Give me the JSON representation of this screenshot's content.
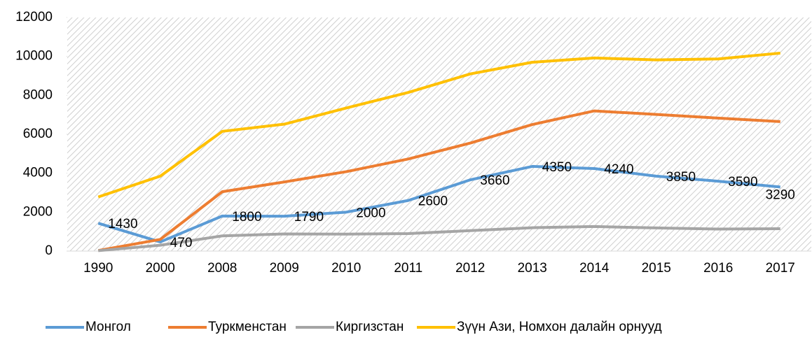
{
  "chart_data": {
    "type": "line",
    "categories": [
      "1990",
      "2000",
      "2008",
      "2009",
      "2010",
      "2011",
      "2012",
      "2013",
      "2014",
      "2015",
      "2016",
      "2017"
    ],
    "series": [
      {
        "name": "Монгол",
        "color": "#5b9bd5",
        "values": [
          1430,
          470,
          1800,
          1790,
          2000,
          2600,
          3660,
          4350,
          4240,
          3850,
          3590,
          3290
        ],
        "data_labels": true
      },
      {
        "name": "Туркменстан",
        "color": "#ed7d31",
        "values": [
          30,
          600,
          3050,
          3550,
          4080,
          4730,
          5550,
          6500,
          7200,
          7020,
          6830,
          6650
        ]
      },
      {
        "name": "Киргизстан",
        "color": "#a5a5a5",
        "values": [
          20,
          300,
          780,
          880,
          870,
          900,
          1050,
          1200,
          1260,
          1190,
          1130,
          1150
        ]
      },
      {
        "name": "Зүүн Ази, Номхон далайн орнууд",
        "color": "#ffc000",
        "values": [
          2780,
          3850,
          6150,
          6520,
          7350,
          8150,
          9100,
          9700,
          9920,
          9820,
          9870,
          10170
        ]
      }
    ],
    "ylim": [
      0,
      12000
    ],
    "yticks": [
      0,
      2000,
      4000,
      6000,
      8000,
      10000,
      12000
    ],
    "legend": "bottom"
  }
}
